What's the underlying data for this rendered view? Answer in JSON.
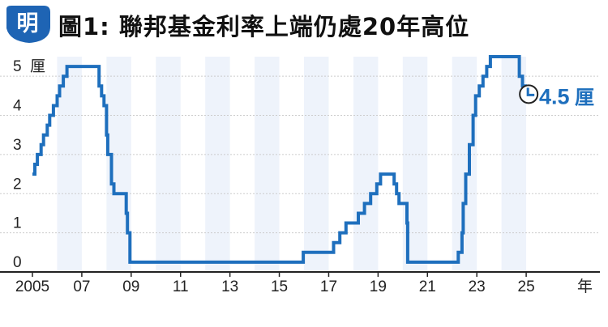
{
  "header": {
    "logo_text": "明",
    "title": "圖1: 聯邦基金利率上端仍處20年高位"
  },
  "colors": {
    "line": "#1e6fbd",
    "band": "#eef3fb",
    "logo_fill": "#1e64b4",
    "axis": "#222222",
    "grid": "#cccccc"
  },
  "chart_data": {
    "type": "line",
    "step": true,
    "title": "圖1: 聯邦基金利率上端仍處20年高位",
    "y_unit_label": "厘",
    "x_unit_label": "年",
    "ylim": [
      0,
      5.5
    ],
    "xlim": [
      2005.0,
      2027.0
    ],
    "y_ticks": [
      {
        "value": 0,
        "label": "0"
      },
      {
        "value": 1,
        "label": "1"
      },
      {
        "value": 2,
        "label": "2"
      },
      {
        "value": 3,
        "label": "3"
      },
      {
        "value": 4,
        "label": "4"
      },
      {
        "value": 5,
        "label": "5"
      }
    ],
    "x_ticks": [
      {
        "value": 2005.0,
        "label": "2005"
      },
      {
        "value": 2007.0,
        "label": "07"
      },
      {
        "value": 2009.0,
        "label": "09"
      },
      {
        "value": 2011.0,
        "label": "11"
      },
      {
        "value": 2013.0,
        "label": "13"
      },
      {
        "value": 2015.0,
        "label": "15"
      },
      {
        "value": 2017.0,
        "label": "17"
      },
      {
        "value": 2019.0,
        "label": "19"
      },
      {
        "value": 2021.0,
        "label": "21"
      },
      {
        "value": 2023.0,
        "label": "23"
      },
      {
        "value": 2025.0,
        "label": "25"
      }
    ],
    "shaded_years": [
      2006,
      2008,
      2010,
      2012,
      2014,
      2016,
      2018,
      2020,
      2022,
      2024
    ],
    "annotation": {
      "x": 2024.97,
      "y": 4.5,
      "value": "4.5",
      "unit": "厘"
    },
    "series": [
      {
        "points": [
          [
            2005.0,
            2.5
          ],
          [
            2005.1,
            2.75
          ],
          [
            2005.2,
            3.0
          ],
          [
            2005.35,
            3.25
          ],
          [
            2005.45,
            3.5
          ],
          [
            2005.6,
            3.75
          ],
          [
            2005.7,
            4.0
          ],
          [
            2005.85,
            4.25
          ],
          [
            2006.0,
            4.5
          ],
          [
            2006.1,
            4.75
          ],
          [
            2006.25,
            5.0
          ],
          [
            2006.4,
            5.25
          ],
          [
            2007.6,
            5.25
          ],
          [
            2007.7,
            4.75
          ],
          [
            2007.8,
            4.5
          ],
          [
            2007.9,
            4.25
          ],
          [
            2008.0,
            3.5
          ],
          [
            2008.05,
            3.0
          ],
          [
            2008.2,
            2.25
          ],
          [
            2008.3,
            2.0
          ],
          [
            2008.75,
            2.0
          ],
          [
            2008.8,
            1.5
          ],
          [
            2008.85,
            1.0
          ],
          [
            2008.95,
            0.25
          ],
          [
            2015.95,
            0.25
          ],
          [
            2015.97,
            0.5
          ],
          [
            2016.95,
            0.5
          ],
          [
            2017.2,
            0.75
          ],
          [
            2017.45,
            1.0
          ],
          [
            2017.7,
            1.25
          ],
          [
            2018.2,
            1.5
          ],
          [
            2018.45,
            1.75
          ],
          [
            2018.7,
            2.0
          ],
          [
            2018.95,
            2.25
          ],
          [
            2019.1,
            2.5
          ],
          [
            2019.55,
            2.5
          ],
          [
            2019.65,
            2.25
          ],
          [
            2019.75,
            2.0
          ],
          [
            2019.85,
            1.75
          ],
          [
            2020.15,
            1.75
          ],
          [
            2020.17,
            1.25
          ],
          [
            2020.2,
            0.25
          ],
          [
            2022.2,
            0.25
          ],
          [
            2022.25,
            0.5
          ],
          [
            2022.4,
            1.0
          ],
          [
            2022.45,
            1.75
          ],
          [
            2022.55,
            2.5
          ],
          [
            2022.7,
            3.25
          ],
          [
            2022.85,
            4.0
          ],
          [
            2022.95,
            4.5
          ],
          [
            2023.1,
            4.75
          ],
          [
            2023.25,
            5.0
          ],
          [
            2023.4,
            5.25
          ],
          [
            2023.55,
            5.5
          ],
          [
            2024.7,
            5.5
          ],
          [
            2024.72,
            5.0
          ],
          [
            2024.85,
            4.75
          ],
          [
            2024.97,
            4.5
          ]
        ]
      }
    ]
  }
}
